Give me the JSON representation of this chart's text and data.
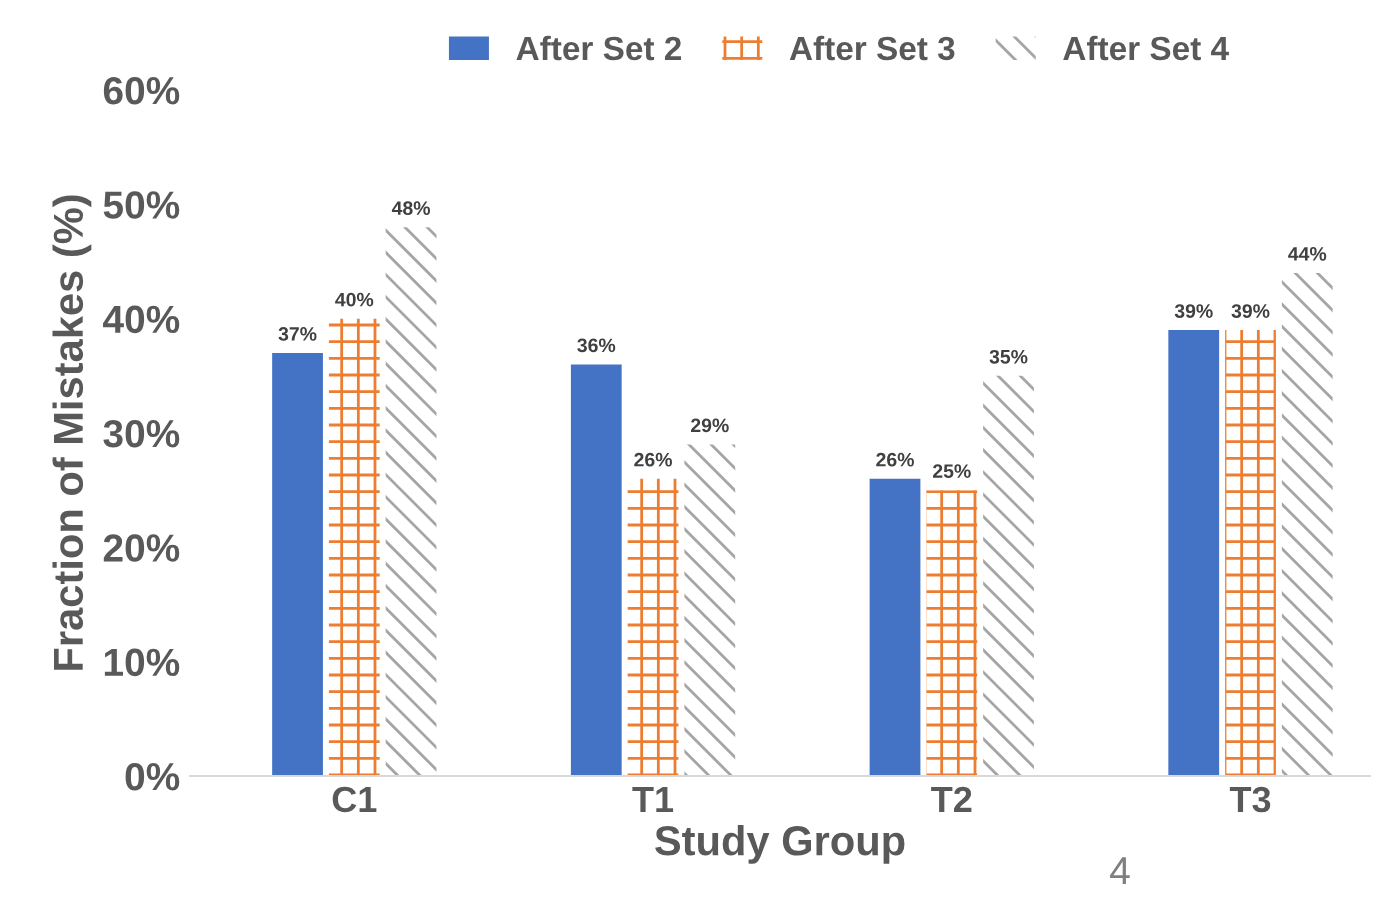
{
  "chart_data": {
    "type": "bar",
    "xlabel": "Study Group",
    "ylabel": "Fraction of Mistakes (%)",
    "categories": [
      "C1",
      "T1",
      "T2",
      "T3"
    ],
    "series": [
      {
        "name": "After Set 2",
        "color": "#4472c4",
        "values": [
          37,
          36,
          26,
          39
        ],
        "value_labels": [
          "37%",
          "36%",
          "26%",
          "39%"
        ]
      },
      {
        "name": "After Set 3",
        "color": "#ed7d31",
        "values": [
          40,
          26,
          25,
          39
        ],
        "value_labels": [
          "40%",
          "26%",
          "25%",
          "39%"
        ]
      },
      {
        "name": "After Set 4",
        "color": "#a5a5a5",
        "values": [
          48,
          29,
          35,
          44
        ],
        "value_labels": [
          "48%",
          "29%",
          "35%",
          "44%"
        ]
      }
    ],
    "ylim": [
      0,
      60
    ],
    "yticks": [
      {
        "value": 0,
        "label": "0%"
      },
      {
        "value": 10,
        "label": "10%"
      },
      {
        "value": 20,
        "label": "20%"
      },
      {
        "value": 30,
        "label": "30%"
      },
      {
        "value": 40,
        "label": "40%"
      },
      {
        "value": 50,
        "label": "50%"
      },
      {
        "value": 60,
        "label": "60%"
      }
    ],
    "grid": false,
    "legend": "top",
    "annotations": [
      "4"
    ]
  }
}
